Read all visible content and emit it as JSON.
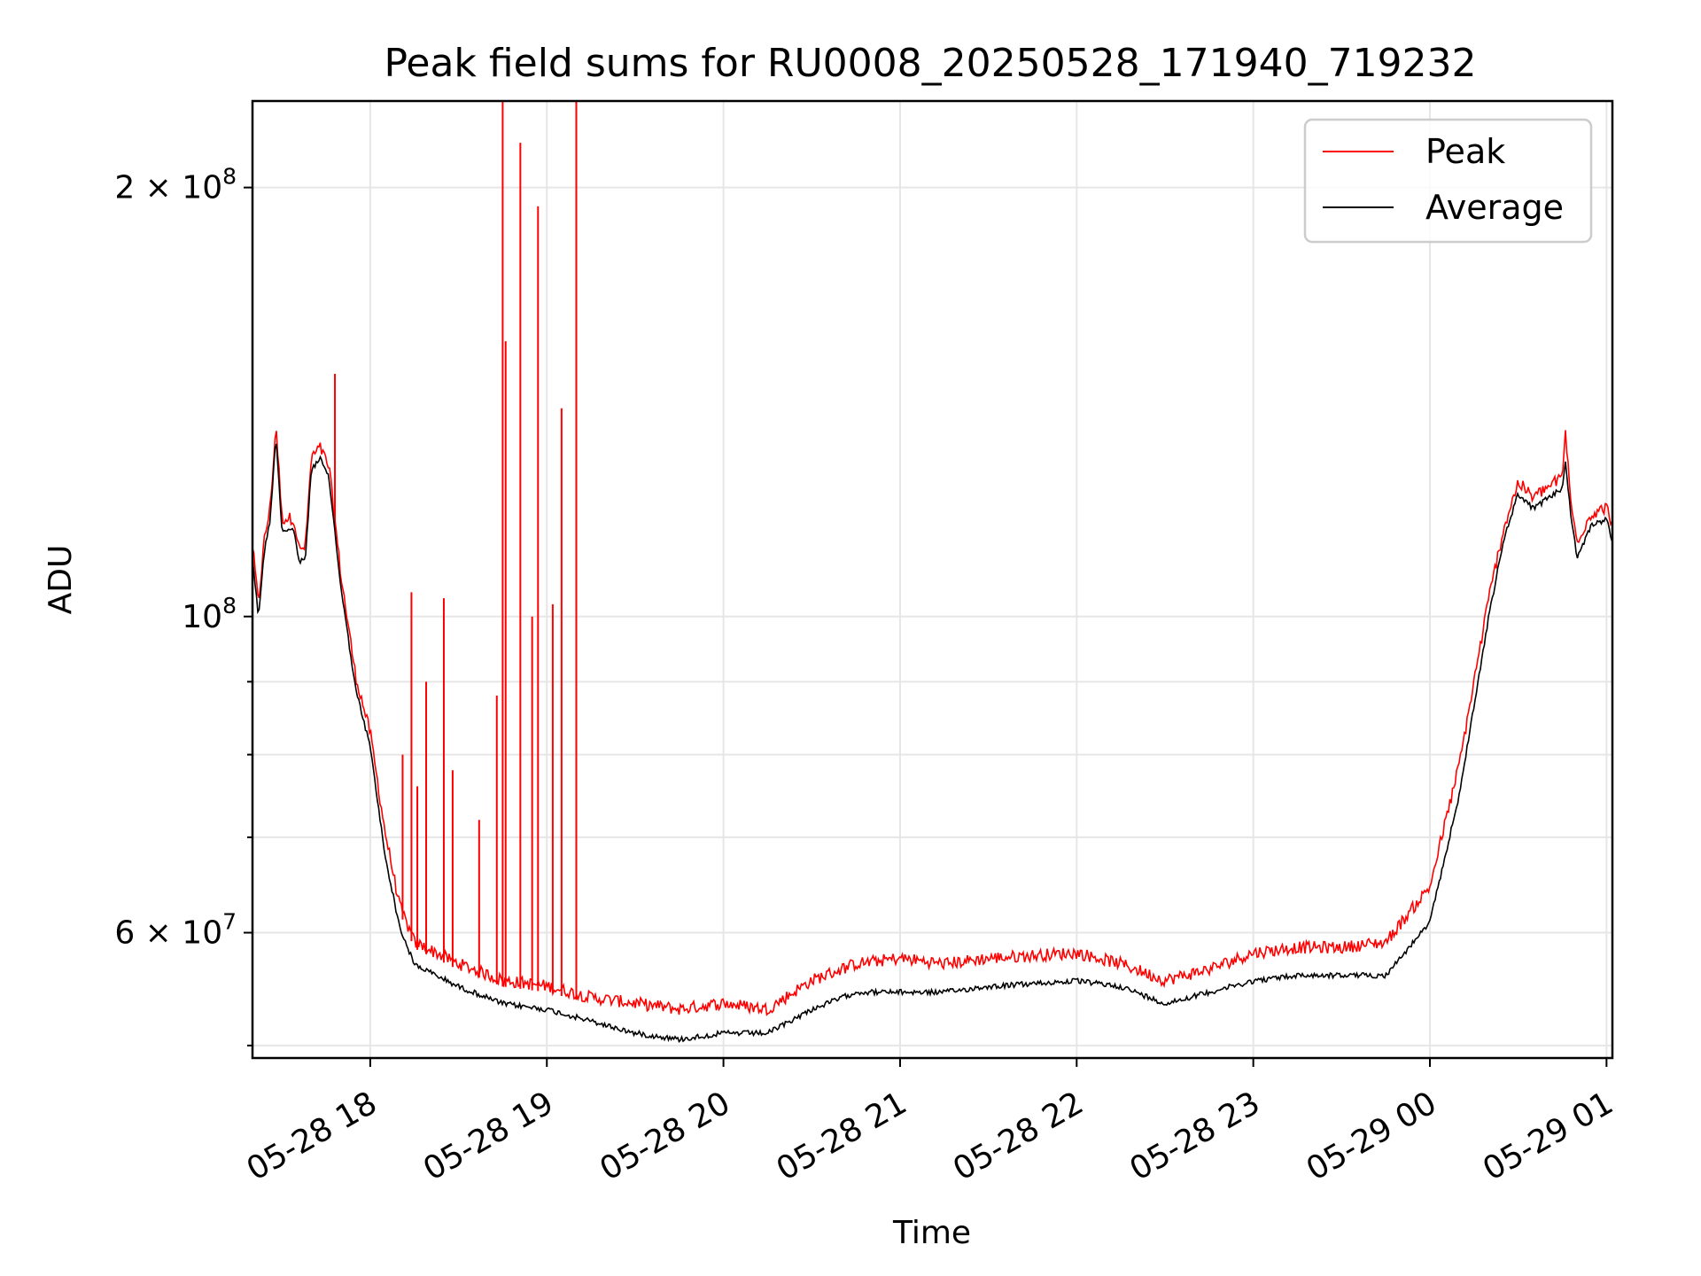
{
  "chart_data": {
    "type": "line",
    "title": "Peak field sums for RU0008_20250528_171940_719232",
    "xlabel": "Time",
    "ylabel": "ADU",
    "yscale": "log",
    "xlim": [
      "2025-05-28T17:20",
      "2025-05-29T01:02"
    ],
    "ylim": [
      49000000,
      230000000
    ],
    "grid": true,
    "legend_position": "top-right",
    "x_ticks": [
      {
        "t": "2025-05-28T18:00",
        "label": "05-28 18"
      },
      {
        "t": "2025-05-28T19:00",
        "label": "05-28 19"
      },
      {
        "t": "2025-05-28T20:00",
        "label": "05-28 20"
      },
      {
        "t": "2025-05-28T21:00",
        "label": "05-28 21"
      },
      {
        "t": "2025-05-28T22:00",
        "label": "05-28 22"
      },
      {
        "t": "2025-05-28T23:00",
        "label": "05-28 23"
      },
      {
        "t": "2025-05-29T00:00",
        "label": "05-29 00"
      },
      {
        "t": "2025-05-29T01:00",
        "label": "05-29 01"
      }
    ],
    "y_major_ticks": [
      {
        "v": 60000000,
        "base": "6 × 10",
        "exp": "7"
      },
      {
        "v": 100000000,
        "base": "10",
        "exp": "8"
      },
      {
        "v": 200000000,
        "base": "2 × 10",
        "exp": "8"
      }
    ],
    "y_minor_ticks": [
      50000000,
      70000000,
      80000000,
      90000000
    ],
    "series": [
      {
        "name": "Peak",
        "color": "#ff0000",
        "points": [
          [
            "2025-05-28T17:20",
            111000000
          ],
          [
            "2025-05-28T17:22",
            101000000
          ],
          [
            "2025-05-28T17:24",
            112000000
          ],
          [
            "2025-05-28T17:26",
            118000000
          ],
          [
            "2025-05-28T17:28",
            135000000
          ],
          [
            "2025-05-28T17:30",
            116000000
          ],
          [
            "2025-05-28T17:34",
            116000000
          ],
          [
            "2025-05-28T17:36",
            110000000
          ],
          [
            "2025-05-28T17:38",
            111000000
          ],
          [
            "2025-05-28T17:40",
            128000000
          ],
          [
            "2025-05-28T17:43",
            130000000
          ],
          [
            "2025-05-28T17:46",
            126000000
          ],
          [
            "2025-05-28T17:50",
            106000000
          ],
          [
            "2025-05-28T17:55",
            90000000
          ],
          [
            "2025-05-28T18:00",
            82000000
          ],
          [
            "2025-05-28T18:05",
            70000000
          ],
          [
            "2025-05-28T18:10",
            62000000
          ],
          [
            "2025-05-28T18:15",
            58500000
          ],
          [
            "2025-05-28T18:30",
            56500000
          ],
          [
            "2025-05-28T18:45",
            55000000
          ],
          [
            "2025-05-28T19:00",
            54500000
          ],
          [
            "2025-05-28T19:15",
            53500000
          ],
          [
            "2025-05-28T19:30",
            53000000
          ],
          [
            "2025-05-28T19:45",
            52500000
          ],
          [
            "2025-05-28T20:00",
            53000000
          ],
          [
            "2025-05-28T20:15",
            52500000
          ],
          [
            "2025-05-28T20:30",
            55000000
          ],
          [
            "2025-05-28T20:45",
            56500000
          ],
          [
            "2025-05-28T21:00",
            57000000
          ],
          [
            "2025-05-28T21:15",
            56500000
          ],
          [
            "2025-05-28T21:30",
            57000000
          ],
          [
            "2025-05-28T22:00",
            57500000
          ],
          [
            "2025-05-28T22:15",
            56500000
          ],
          [
            "2025-05-28T22:30",
            55000000
          ],
          [
            "2025-05-28T22:45",
            56000000
          ],
          [
            "2025-05-28T23:00",
            57500000
          ],
          [
            "2025-05-28T23:15",
            58000000
          ],
          [
            "2025-05-28T23:30",
            58000000
          ],
          [
            "2025-05-28T23:45",
            58500000
          ],
          [
            "2025-05-29T00:00",
            64000000
          ],
          [
            "2025-05-29T00:10",
            78000000
          ],
          [
            "2025-05-29T00:20",
            102000000
          ],
          [
            "2025-05-29T00:25",
            114000000
          ],
          [
            "2025-05-29T00:30",
            123000000
          ],
          [
            "2025-05-29T00:35",
            120000000
          ],
          [
            "2025-05-29T00:45",
            124000000
          ],
          [
            "2025-05-29T00:46",
            134000000
          ],
          [
            "2025-05-29T00:48",
            118000000
          ],
          [
            "2025-05-29T00:50",
            112000000
          ],
          [
            "2025-05-29T00:55",
            117000000
          ],
          [
            "2025-05-29T01:00",
            118000000
          ],
          [
            "2025-05-29T01:02",
            115000000
          ]
        ],
        "spikes": [
          [
            "2025-05-28T17:48",
            148000000
          ],
          [
            "2025-05-28T18:11",
            80000000
          ],
          [
            "2025-05-28T18:14",
            104000000
          ],
          [
            "2025-05-28T18:16",
            76000000
          ],
          [
            "2025-05-28T18:19",
            90000000
          ],
          [
            "2025-05-28T18:25",
            103000000
          ],
          [
            "2025-05-28T18:28",
            78000000
          ],
          [
            "2025-05-28T18:37",
            72000000
          ],
          [
            "2025-05-28T18:43",
            88000000
          ],
          [
            "2025-05-28T18:45",
            230000000
          ],
          [
            "2025-05-28T18:46",
            156000000
          ],
          [
            "2025-05-28T18:51",
            215000000
          ],
          [
            "2025-05-28T18:55",
            100000000
          ],
          [
            "2025-05-28T18:57",
            194000000
          ],
          [
            "2025-05-28T19:02",
            102000000
          ],
          [
            "2025-05-28T19:05",
            140000000
          ],
          [
            "2025-05-28T19:10",
            230000000
          ]
        ]
      },
      {
        "name": "Average",
        "color": "#000000",
        "points": [
          [
            "2025-05-28T17:20",
            110000000
          ],
          [
            "2025-05-28T17:22",
            100000000
          ],
          [
            "2025-05-28T17:24",
            111000000
          ],
          [
            "2025-05-28T17:26",
            117000000
          ],
          [
            "2025-05-28T17:28",
            134000000
          ],
          [
            "2025-05-28T17:30",
            115000000
          ],
          [
            "2025-05-28T17:34",
            115000000
          ],
          [
            "2025-05-28T17:36",
            109000000
          ],
          [
            "2025-05-28T17:38",
            110000000
          ],
          [
            "2025-05-28T17:40",
            127000000
          ],
          [
            "2025-05-28T17:43",
            129000000
          ],
          [
            "2025-05-28T17:46",
            125000000
          ],
          [
            "2025-05-28T17:50",
            105000000
          ],
          [
            "2025-05-28T17:55",
            89000000
          ],
          [
            "2025-05-28T18:00",
            81000000
          ],
          [
            "2025-05-28T18:05",
            68000000
          ],
          [
            "2025-05-28T18:10",
            60500000
          ],
          [
            "2025-05-28T18:15",
            57000000
          ],
          [
            "2025-05-28T18:30",
            55000000
          ],
          [
            "2025-05-28T18:45",
            53500000
          ],
          [
            "2025-05-28T19:00",
            53000000
          ],
          [
            "2025-05-28T19:15",
            52000000
          ],
          [
            "2025-05-28T19:30",
            51000000
          ],
          [
            "2025-05-28T19:45",
            50500000
          ],
          [
            "2025-05-28T20:00",
            51000000
          ],
          [
            "2025-05-28T20:15",
            51000000
          ],
          [
            "2025-05-28T20:30",
            53000000
          ],
          [
            "2025-05-28T20:45",
            54500000
          ],
          [
            "2025-05-28T21:00",
            54500000
          ],
          [
            "2025-05-28T21:15",
            54500000
          ],
          [
            "2025-05-28T21:30",
            55000000
          ],
          [
            "2025-05-28T22:00",
            55500000
          ],
          [
            "2025-05-28T22:15",
            55000000
          ],
          [
            "2025-05-28T22:30",
            53500000
          ],
          [
            "2025-05-28T22:45",
            54500000
          ],
          [
            "2025-05-28T23:00",
            55500000
          ],
          [
            "2025-05-28T23:15",
            56000000
          ],
          [
            "2025-05-28T23:30",
            56000000
          ],
          [
            "2025-05-28T23:45",
            56000000
          ],
          [
            "2025-05-29T00:00",
            61000000
          ],
          [
            "2025-05-29T00:10",
            75000000
          ],
          [
            "2025-05-29T00:20",
            100000000
          ],
          [
            "2025-05-29T00:25",
            113000000
          ],
          [
            "2025-05-29T00:30",
            122000000
          ],
          [
            "2025-05-29T00:35",
            119000000
          ],
          [
            "2025-05-29T00:45",
            123000000
          ],
          [
            "2025-05-29T00:46",
            129000000
          ],
          [
            "2025-05-29T00:48",
            117000000
          ],
          [
            "2025-05-29T00:50",
            110000000
          ],
          [
            "2025-05-29T00:55",
            116000000
          ],
          [
            "2025-05-29T01:00",
            117000000
          ],
          [
            "2025-05-29T01:02",
            113000000
          ]
        ]
      }
    ]
  }
}
